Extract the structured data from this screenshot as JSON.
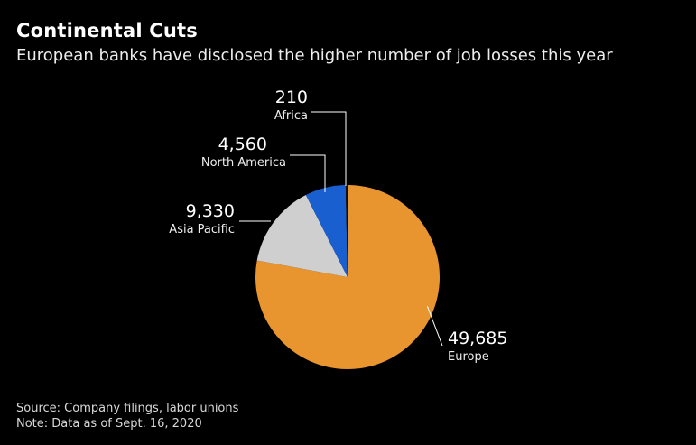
{
  "header": {
    "title": "Continental Cuts",
    "subtitle": "European banks have disclosed the higher number of job losses this year"
  },
  "footer": {
    "source": "Source: Company filings, labor unions",
    "note": "Note: Data as of Sept. 16, 2020"
  },
  "chart_data": {
    "type": "pie",
    "title": "Continental Cuts",
    "subtitle": "European banks have disclosed the higher number of job losses this year",
    "slices": [
      {
        "label": "Europe",
        "value": 49685,
        "value_text": "49,685",
        "color": "#e8952f"
      },
      {
        "label": "Asia Pacific",
        "value": 9330,
        "value_text": "9,330",
        "color": "#cfcfcf"
      },
      {
        "label": "North America",
        "value": 4560,
        "value_text": "4,560",
        "color": "#1a5fd0"
      },
      {
        "label": "Africa",
        "value": 210,
        "value_text": "210",
        "color": "#0f0f0f"
      }
    ],
    "start": "12 o'clock",
    "direction": "clockwise",
    "legend": "none (callout labels)"
  }
}
